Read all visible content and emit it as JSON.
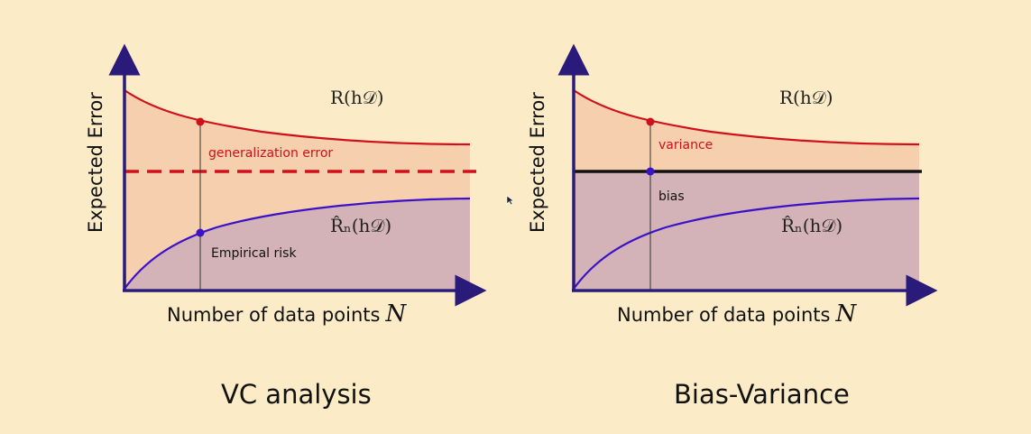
{
  "panels": [
    {
      "title": "VC analysis",
      "ylabel": "Expected Error",
      "xlabel": "Number of data points",
      "xlabel_symbol": "N",
      "upper_curve_label": "R(h𝒟)",
      "lower_curve_label": "R̂ₙ(h𝒟)",
      "annotations": {
        "gap": "generalization error",
        "lower": "Empirical risk"
      },
      "horizontal_line": "dashed"
    },
    {
      "title": "Bias-Variance",
      "ylabel": "Expected Error",
      "xlabel": "Number of data points",
      "xlabel_symbol": "N",
      "upper_curve_label": "R(h𝒟)",
      "lower_curve_label": "R̂ₙ(h𝒟)",
      "annotations": {
        "upper": "variance",
        "lower": "bias"
      },
      "horizontal_line": "solid"
    }
  ],
  "colors": {
    "background": "#fbecc7",
    "axis": "#2a1a7a",
    "upper_curve": "#d0101a",
    "lower_curve": "#3a12c8",
    "upper_fill": "#f6cfae",
    "lower_fill": "#d3b3b7",
    "bias_line": "#111111"
  },
  "icons": {
    "cursor": "arrow-cursor-icon"
  }
}
